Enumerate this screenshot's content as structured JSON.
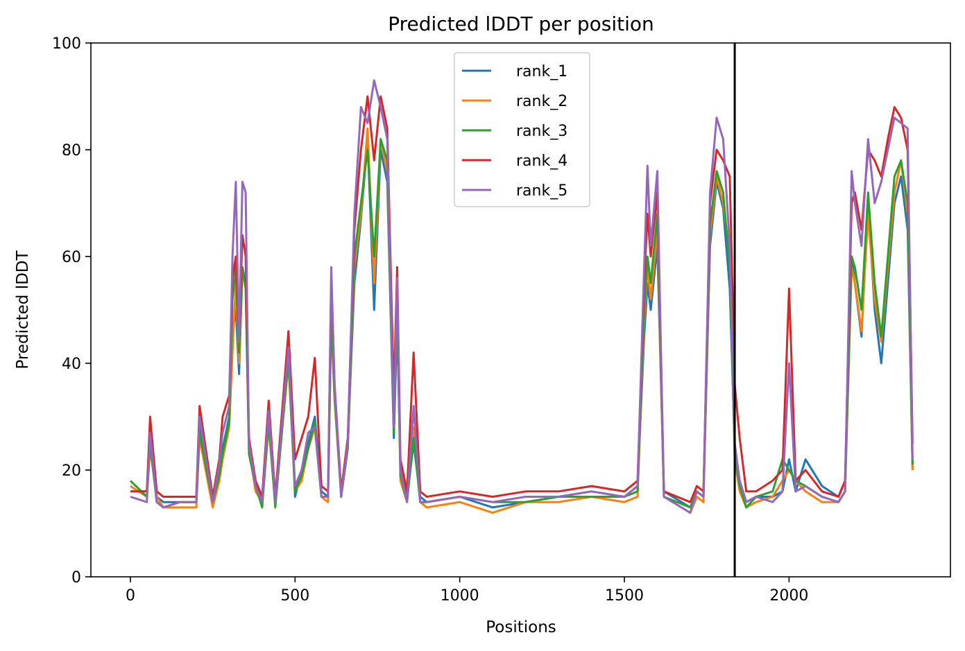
{
  "chart_data": {
    "type": "line",
    "title": "Predicted lDDT per position",
    "xlabel": "Positions",
    "ylabel": "Predicted lDDT",
    "xlim": [
      -120,
      2490
    ],
    "ylim": [
      0,
      100
    ],
    "xticks": [
      0,
      500,
      1000,
      1500,
      2000
    ],
    "yticks": [
      0,
      20,
      40,
      60,
      80,
      100
    ],
    "grid": false,
    "legend_position": "upper center",
    "vertical_line": {
      "x": 1835,
      "color": "#000000"
    },
    "x": [
      0,
      50,
      60,
      80,
      100,
      150,
      200,
      210,
      250,
      270,
      280,
      300,
      310,
      320,
      330,
      340,
      350,
      360,
      380,
      400,
      420,
      440,
      480,
      500,
      520,
      540,
      560,
      580,
      600,
      610,
      620,
      640,
      660,
      680,
      700,
      720,
      740,
      760,
      780,
      800,
      810,
      820,
      840,
      860,
      880,
      900,
      1000,
      1100,
      1200,
      1300,
      1400,
      1500,
      1540,
      1560,
      1570,
      1580,
      1600,
      1620,
      1700,
      1720,
      1740,
      1760,
      1780,
      1800,
      1820,
      1835,
      1850,
      1870,
      1900,
      1950,
      1980,
      2000,
      2020,
      2050,
      2100,
      2150,
      2170,
      2190,
      2200,
      2220,
      2240,
      2260,
      2280,
      2300,
      2320,
      2340,
      2360,
      2375
    ],
    "series": [
      {
        "name": "rank_1",
        "color": "#1f77b4",
        "values": [
          16,
          16,
          26,
          15,
          14,
          14,
          14,
          28,
          14,
          20,
          24,
          30,
          46,
          50,
          38,
          58,
          55,
          24,
          18,
          14,
          30,
          14,
          42,
          15,
          20,
          25,
          30,
          16,
          15,
          50,
          35,
          16,
          25,
          55,
          67,
          82,
          50,
          80,
          74,
          26,
          48,
          20,
          15,
          25,
          15,
          14,
          15,
          13,
          14,
          15,
          16,
          15,
          17,
          45,
          55,
          50,
          62,
          16,
          13,
          16,
          15,
          62,
          74,
          69,
          54,
          24,
          18,
          14,
          15,
          15,
          16,
          22,
          16,
          22,
          17,
          15,
          18,
          60,
          55,
          45,
          70,
          50,
          40,
          55,
          70,
          75,
          65,
          20
        ]
      },
      {
        "name": "rank_2",
        "color": "#ff7f0e",
        "values": [
          17,
          15,
          24,
          15,
          13,
          13,
          13,
          26,
          13,
          18,
          22,
          28,
          42,
          55,
          40,
          56,
          56,
          24,
          16,
          14,
          28,
          14,
          40,
          16,
          18,
          24,
          28,
          15,
          14,
          48,
          33,
          15,
          24,
          58,
          68,
          84,
          55,
          82,
          76,
          28,
          52,
          18,
          14,
          28,
          14,
          13,
          14,
          12,
          14,
          14,
          15,
          14,
          15,
          48,
          58,
          52,
          65,
          15,
          12,
          15,
          14,
          64,
          75,
          70,
          60,
          22,
          16,
          13,
          14,
          15,
          18,
          20,
          18,
          16,
          14,
          14,
          16,
          58,
          55,
          46,
          68,
          52,
          44,
          58,
          72,
          78,
          68,
          20
        ]
      },
      {
        "name": "rank_3",
        "color": "#2ca02c",
        "values": [
          18,
          15,
          25,
          14,
          13,
          14,
          14,
          27,
          14,
          19,
          23,
          29,
          52,
          58,
          42,
          58,
          54,
          23,
          17,
          13,
          29,
          13,
          41,
          16,
          19,
          24,
          29,
          15,
          15,
          49,
          34,
          15,
          24,
          60,
          70,
          80,
          60,
          82,
          78,
          27,
          50,
          19,
          14,
          26,
          14,
          14,
          15,
          14,
          14,
          15,
          15,
          15,
          16,
          50,
          60,
          55,
          68,
          15,
          13,
          16,
          15,
          66,
          76,
          72,
          58,
          23,
          17,
          13,
          15,
          16,
          22,
          20,
          18,
          17,
          15,
          14,
          16,
          60,
          58,
          50,
          72,
          55,
          45,
          60,
          75,
          78,
          70,
          21
        ]
      },
      {
        "name": "rank_4",
        "color": "#d62728",
        "values": [
          16,
          16,
          30,
          16,
          15,
          15,
          15,
          32,
          15,
          22,
          30,
          34,
          56,
          60,
          45,
          64,
          60,
          26,
          18,
          15,
          33,
          15,
          46,
          22,
          26,
          30,
          41,
          17,
          16,
          56,
          36,
          16,
          26,
          65,
          80,
          90,
          78,
          90,
          84,
          34,
          58,
          22,
          16,
          42,
          16,
          15,
          16,
          15,
          16,
          16,
          17,
          16,
          18,
          55,
          68,
          60,
          72,
          16,
          14,
          17,
          16,
          70,
          80,
          78,
          75,
          36,
          26,
          16,
          16,
          18,
          20,
          54,
          18,
          20,
          16,
          15,
          18,
          70,
          72,
          65,
          80,
          78,
          75,
          82,
          88,
          86,
          80,
          25
        ]
      },
      {
        "name": "rank_5",
        "color": "#9467bd",
        "values": [
          15,
          14,
          27,
          14,
          13,
          14,
          14,
          30,
          14,
          21,
          27,
          32,
          60,
          74,
          44,
          74,
          72,
          25,
          17,
          14,
          31,
          14,
          43,
          17,
          20,
          27,
          28,
          15,
          15,
          58,
          36,
          15,
          25,
          68,
          88,
          85,
          93,
          88,
          82,
          28,
          56,
          20,
          14,
          32,
          14,
          14,
          15,
          14,
          15,
          15,
          16,
          15,
          17,
          58,
          77,
          62,
          76,
          15,
          12,
          16,
          15,
          72,
          86,
          82,
          62,
          25,
          18,
          14,
          15,
          14,
          16,
          40,
          16,
          17,
          15,
          14,
          16,
          76,
          70,
          62,
          82,
          70,
          74,
          80,
          86,
          85,
          84,
          22
        ]
      }
    ]
  }
}
